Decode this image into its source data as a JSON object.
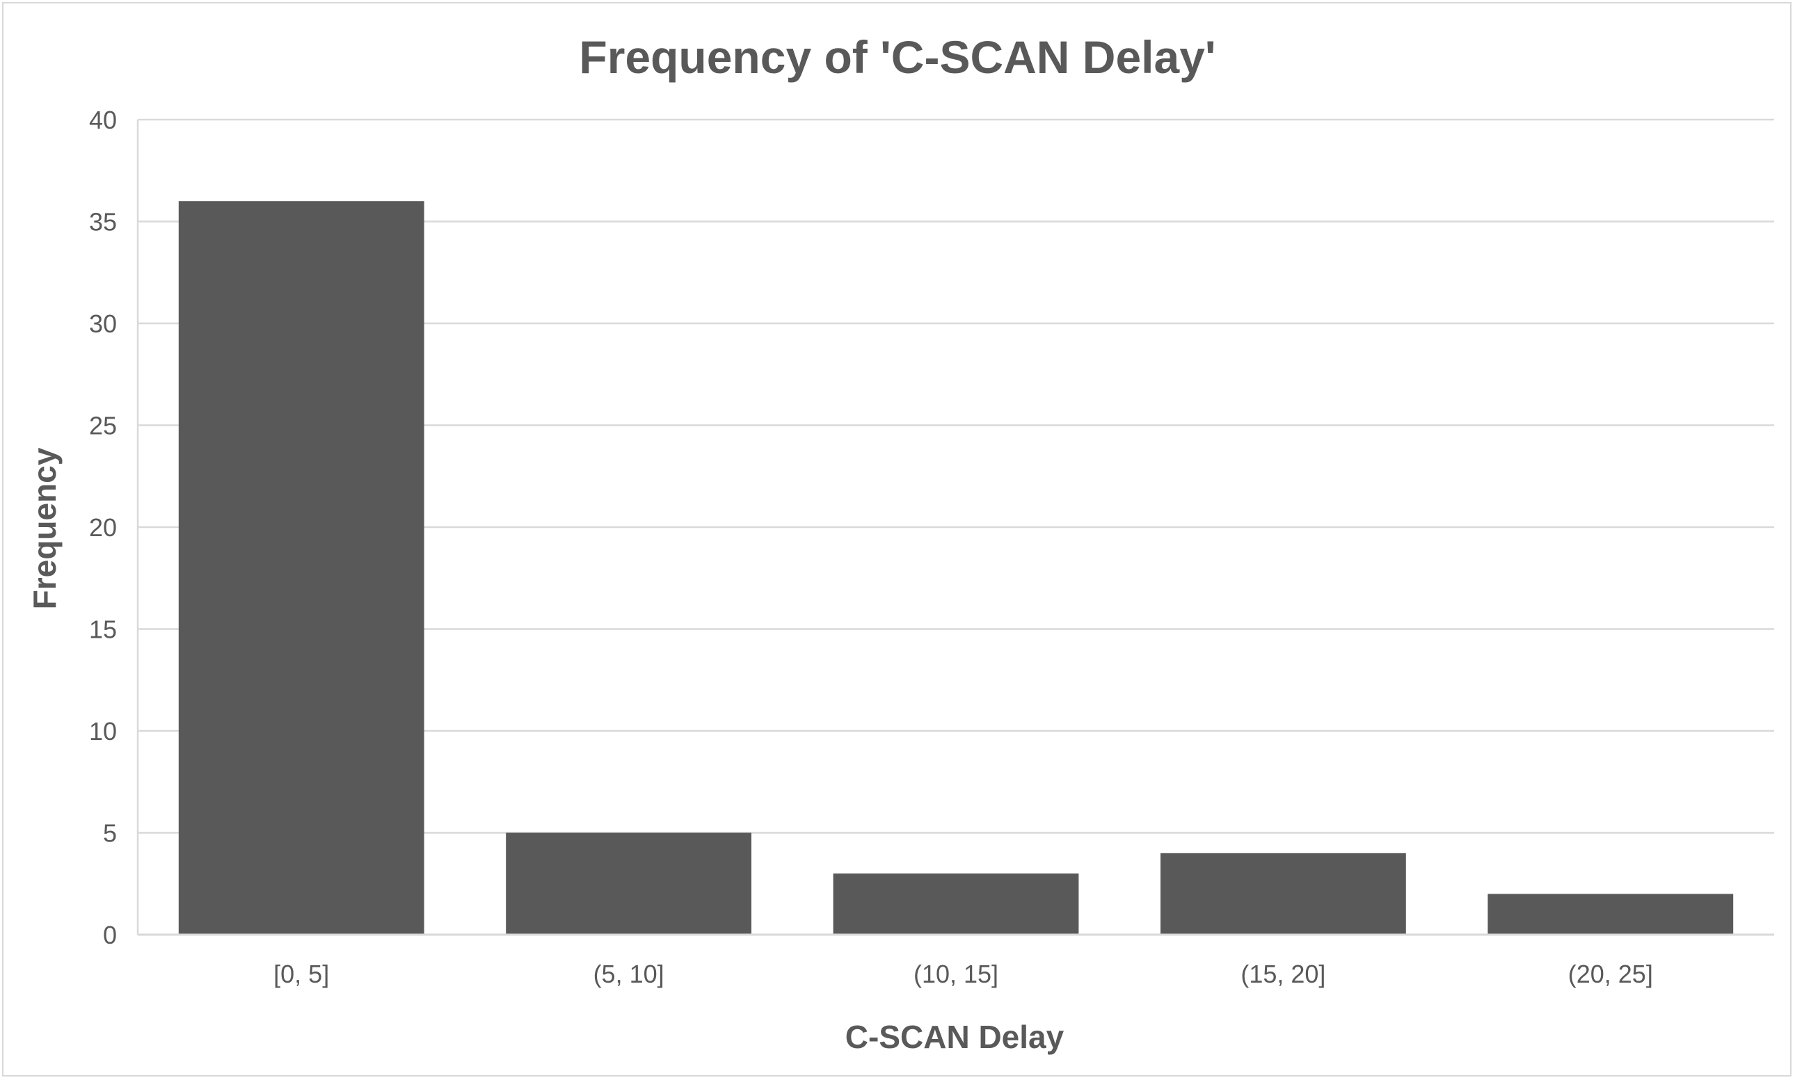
{
  "chart_data": {
    "type": "bar",
    "title": "Frequency of 'C-SCAN Delay'",
    "xlabel": "C-SCAN Delay",
    "ylabel": "Frequency",
    "categories": [
      "[0, 5]",
      "(5, 10]",
      "(10, 15]",
      "(15, 20]",
      "(20, 25]"
    ],
    "values": [
      36,
      5,
      3,
      4,
      2
    ],
    "ylim": [
      0,
      40
    ],
    "yticks": [
      "0",
      "5",
      "10",
      "15",
      "20",
      "25",
      "30",
      "35",
      "40"
    ],
    "grid": true,
    "legend": "none",
    "colors": {
      "bar": "#595959",
      "grid": "#d9d9d9",
      "text": "#595959"
    }
  }
}
